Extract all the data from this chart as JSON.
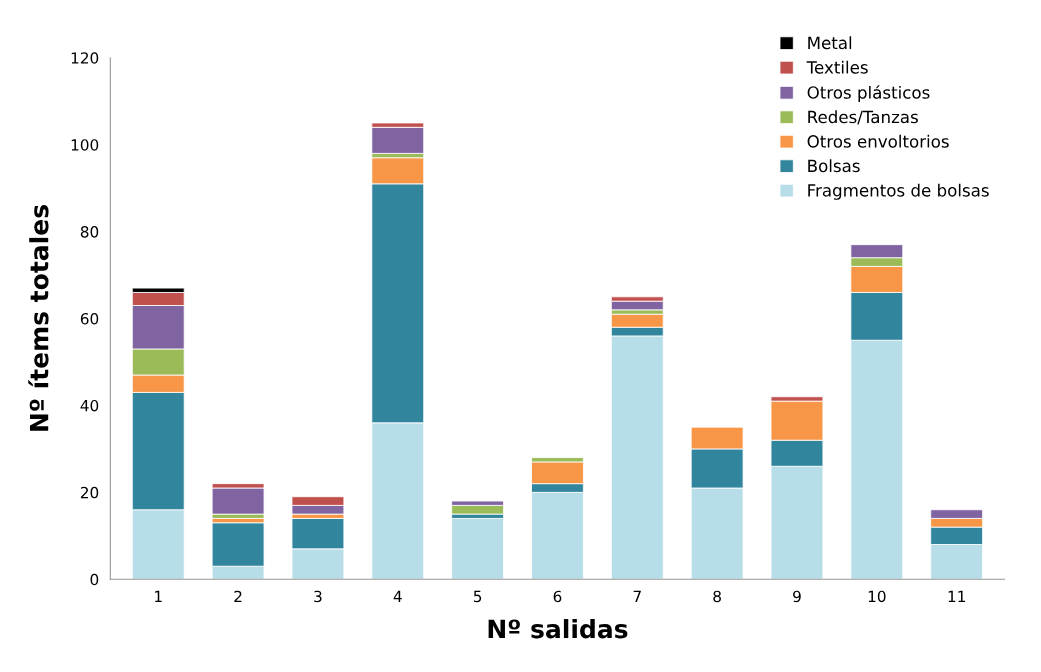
{
  "chart_data": {
    "type": "bar",
    "stacked": true,
    "xlabel": "Nº salidas",
    "ylabel": "Nº ítems totales",
    "categories": [
      "1",
      "2",
      "3",
      "4",
      "5",
      "6",
      "7",
      "8",
      "9",
      "10",
      "11"
    ],
    "series": [
      {
        "name": "Fragmentos de bolsas",
        "color": "#b7dde8",
        "values": [
          16,
          3,
          7,
          36,
          14,
          20,
          56,
          21,
          26,
          55,
          8
        ]
      },
      {
        "name": "Bolsas",
        "color": "#31859c",
        "values": [
          27,
          10,
          7,
          55,
          1,
          2,
          2,
          9,
          6,
          11,
          4
        ]
      },
      {
        "name": "Otros envoltorios",
        "color": "#f79646",
        "values": [
          4,
          1,
          1,
          6,
          null,
          5,
          3,
          5,
          9,
          6,
          2
        ]
      },
      {
        "name": "Redes/Tanzas",
        "color": "#9bbb59",
        "values": [
          6,
          1,
          null,
          1,
          2,
          1,
          1,
          null,
          null,
          2,
          null
        ]
      },
      {
        "name": "Otros plásticos",
        "color": "#8064a2",
        "values": [
          10,
          6,
          2,
          6,
          1,
          null,
          2,
          null,
          null,
          3,
          2
        ]
      },
      {
        "name": "Textiles",
        "color": "#c0504d",
        "values": [
          3,
          1,
          2,
          1,
          null,
          null,
          1,
          null,
          1,
          null,
          null
        ]
      },
      {
        "name": "Metal",
        "color": "#000000",
        "values": [
          1,
          null,
          null,
          null,
          null,
          null,
          null,
          null,
          null,
          null,
          null
        ]
      }
    ],
    "ylim": [
      0,
      120
    ],
    "yticks": [
      0,
      20,
      40,
      60,
      80,
      100,
      120
    ],
    "grid": false,
    "legend": "top right"
  }
}
